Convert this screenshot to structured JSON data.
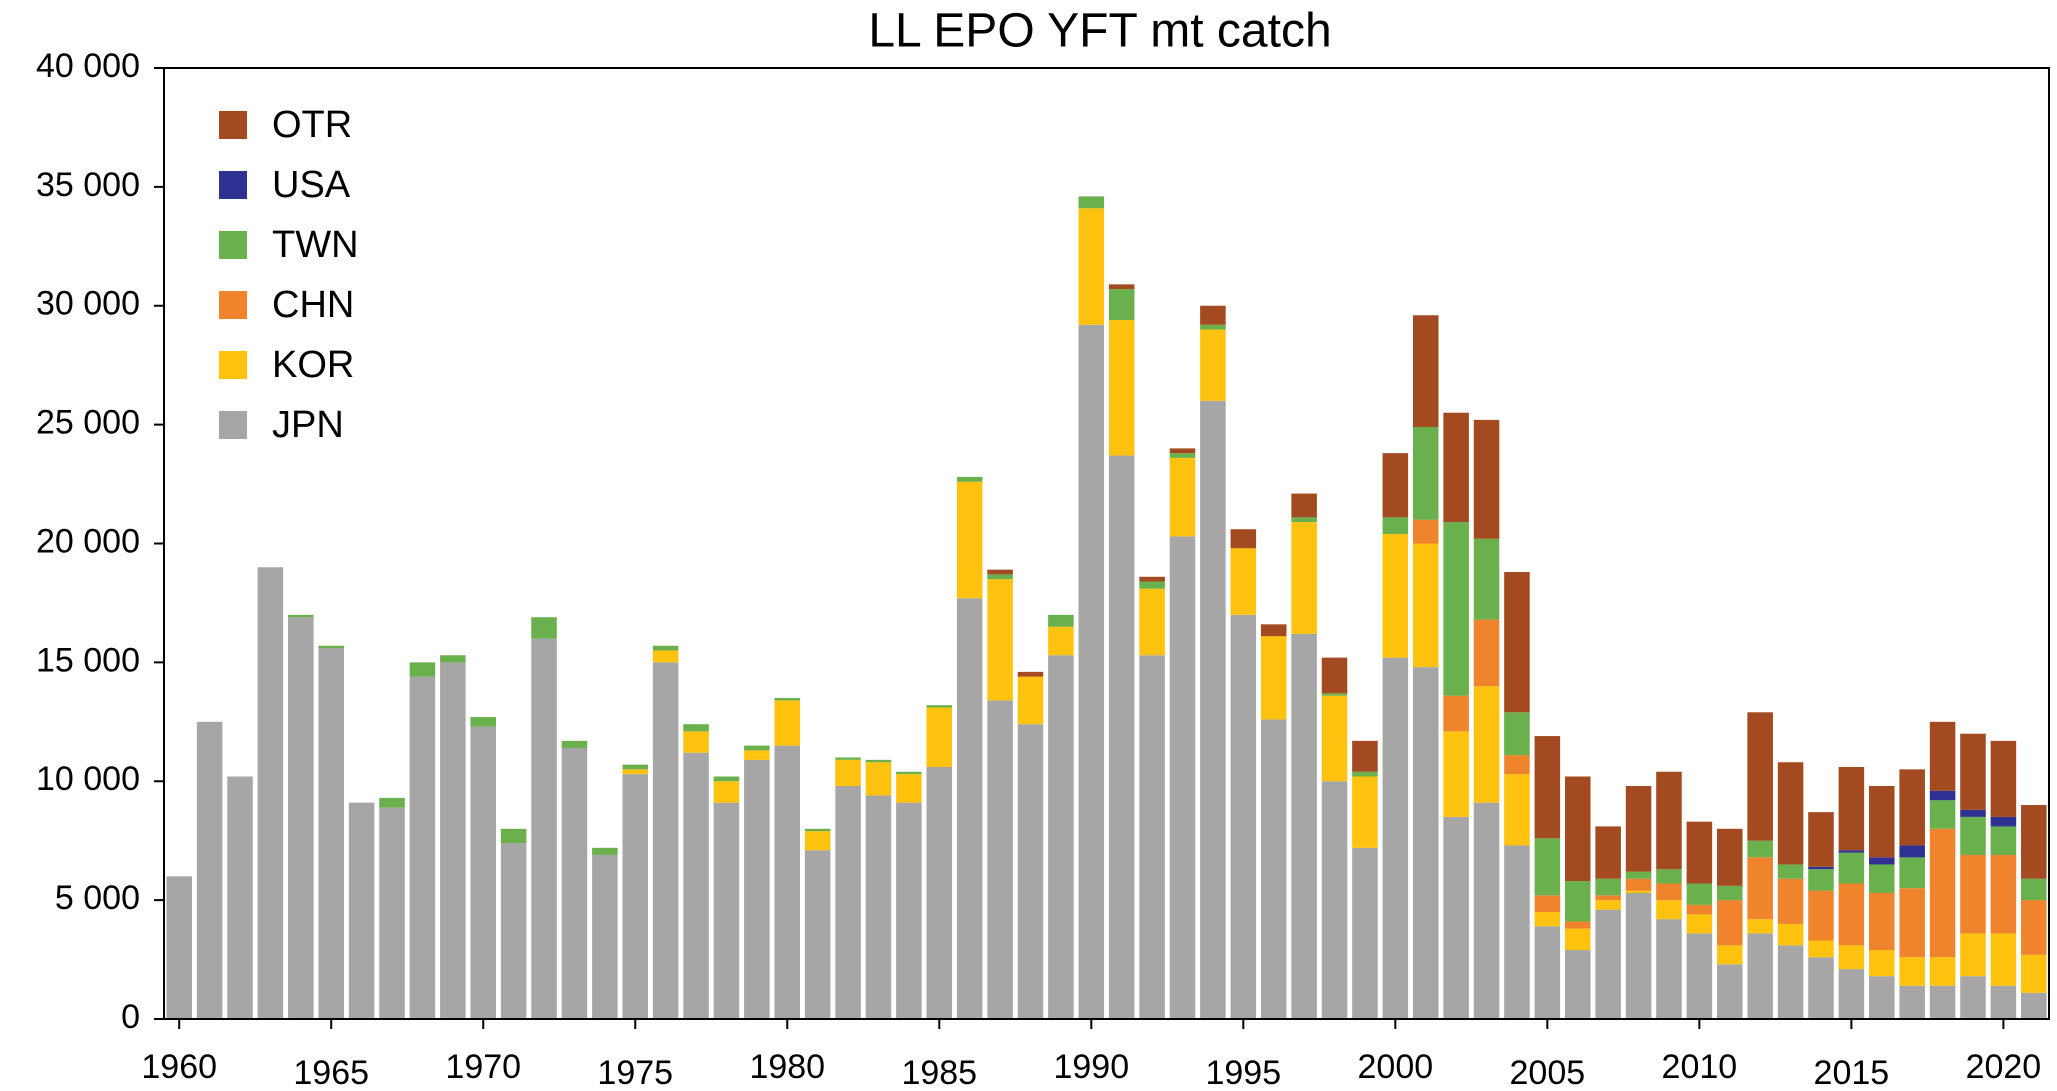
{
  "chart_data": {
    "type": "stacked_bar",
    "title": "LL EPO YFT mt catch",
    "x": [
      1960,
      1961,
      1962,
      1963,
      1964,
      1965,
      1966,
      1967,
      1968,
      1969,
      1970,
      1971,
      1972,
      1973,
      1974,
      1975,
      1976,
      1977,
      1978,
      1979,
      1980,
      1981,
      1982,
      1983,
      1984,
      1985,
      1986,
      1987,
      1988,
      1989,
      1990,
      1991,
      1992,
      1993,
      1994,
      1995,
      1996,
      1997,
      1998,
      1999,
      2000,
      2001,
      2002,
      2003,
      2004,
      2005,
      2006,
      2007,
      2008,
      2009,
      2010,
      2011,
      2012,
      2013,
      2014,
      2015,
      2016,
      2017,
      2018,
      2019,
      2020,
      2021
    ],
    "xlim": [
      1959.5,
      2021.5
    ],
    "xticks": [
      1960,
      1965,
      1970,
      1975,
      1980,
      1985,
      1990,
      1995,
      2000,
      2005,
      2010,
      2015,
      2020
    ],
    "ylim": [
      0,
      40000
    ],
    "yticks": [
      0,
      {
        "value": 5000,
        "label": "5 000"
      },
      {
        "value": 10000,
        "label": "10 000"
      },
      {
        "value": 15000,
        "label": "15 000"
      },
      {
        "value": 20000,
        "label": "20 000"
      },
      {
        "value": 25000,
        "label": "25 000"
      },
      {
        "value": 30000,
        "label": "30 000"
      },
      {
        "value": 35000,
        "label": "35 000"
      },
      {
        "value": 40000,
        "label": "40 000"
      }
    ],
    "legend": "upper left",
    "series": [
      {
        "name": "JPN",
        "color": "#a6a6a6",
        "values": [
          6000,
          12500,
          10200,
          19000,
          16900,
          15600,
          9100,
          8900,
          14400,
          15000,
          12300,
          7400,
          16000,
          11400,
          6900,
          10300,
          15000,
          11200,
          9100,
          10900,
          11500,
          7100,
          9800,
          9400,
          9100,
          10600,
          17700,
          13400,
          12400,
          15300,
          29200,
          23700,
          15300,
          20300,
          26000,
          17000,
          12600,
          16200,
          10000,
          7200,
          15200,
          14800,
          8500,
          9100,
          7300,
          3900,
          2900,
          4600,
          5300,
          4200,
          3600,
          2300,
          3600,
          3100,
          2600,
          2100,
          1800,
          1400,
          1400,
          1800,
          1400,
          1100
        ]
      },
      {
        "name": "KOR",
        "color": "#ffc20e",
        "values": [
          0,
          0,
          0,
          0,
          0,
          0,
          0,
          0,
          0,
          0,
          0,
          0,
          0,
          0,
          0,
          200,
          500,
          900,
          900,
          400,
          1900,
          800,
          1100,
          1400,
          1200,
          2500,
          4900,
          5100,
          2000,
          1200,
          4900,
          5700,
          2800,
          3300,
          3000,
          2800,
          3500,
          4700,
          3600,
          3000,
          5200,
          5200,
          3600,
          4900,
          3000,
          600,
          900,
          400,
          100,
          800,
          800,
          800,
          600,
          900,
          700,
          1000,
          1100,
          1200,
          1200,
          1800,
          2200,
          1600
        ]
      },
      {
        "name": "CHN",
        "color": "#f0842c",
        "values": [
          0,
          0,
          0,
          0,
          0,
          0,
          0,
          0,
          0,
          0,
          0,
          0,
          0,
          0,
          0,
          0,
          0,
          0,
          0,
          0,
          0,
          0,
          0,
          0,
          0,
          0,
          0,
          0,
          0,
          0,
          0,
          0,
          0,
          0,
          0,
          0,
          0,
          0,
          0,
          0,
          0,
          1000,
          1500,
          2800,
          800,
          700,
          300,
          200,
          500,
          700,
          400,
          1900,
          2600,
          1900,
          2100,
          2600,
          2400,
          2900,
          5400,
          3300,
          3300,
          2300
        ]
      },
      {
        "name": "TWN",
        "color": "#6ab04c",
        "values": [
          0,
          0,
          0,
          0,
          100,
          100,
          0,
          400,
          600,
          300,
          400,
          600,
          900,
          300,
          300,
          200,
          200,
          300,
          200,
          200,
          100,
          100,
          100,
          100,
          100,
          100,
          200,
          200,
          0,
          500,
          500,
          1300,
          300,
          200,
          200,
          0,
          0,
          200,
          100,
          200,
          700,
          3900,
          7300,
          3400,
          1800,
          2400,
          1700,
          700,
          300,
          600,
          900,
          600,
          700,
          600,
          900,
          1300,
          1200,
          1300,
          1200,
          1600,
          1200,
          900
        ]
      },
      {
        "name": "USA",
        "color": "#2e3192",
        "values": [
          0,
          0,
          0,
          0,
          0,
          0,
          0,
          0,
          0,
          0,
          0,
          0,
          0,
          0,
          0,
          0,
          0,
          0,
          0,
          0,
          0,
          0,
          0,
          0,
          0,
          0,
          0,
          0,
          0,
          0,
          0,
          0,
          0,
          0,
          0,
          0,
          0,
          0,
          0,
          0,
          0,
          0,
          0,
          0,
          0,
          0,
          0,
          0,
          0,
          0,
          0,
          0,
          0,
          0,
          100,
          100,
          300,
          500,
          400,
          300,
          400,
          0
        ]
      },
      {
        "name": "OTR",
        "color": "#a34a20",
        "values": [
          0,
          0,
          0,
          0,
          0,
          0,
          0,
          0,
          0,
          0,
          0,
          0,
          0,
          0,
          0,
          0,
          0,
          0,
          0,
          0,
          0,
          0,
          0,
          0,
          0,
          0,
          0,
          200,
          200,
          0,
          0,
          200,
          200,
          200,
          800,
          800,
          500,
          1000,
          1500,
          1300,
          2700,
          4700,
          4600,
          5000,
          5900,
          4300,
          4400,
          2200,
          3600,
          4100,
          2600,
          2400,
          5400,
          4300,
          2300,
          3500,
          3000,
          3200,
          2900,
          3200,
          3200,
          3100
        ]
      }
    ]
  }
}
